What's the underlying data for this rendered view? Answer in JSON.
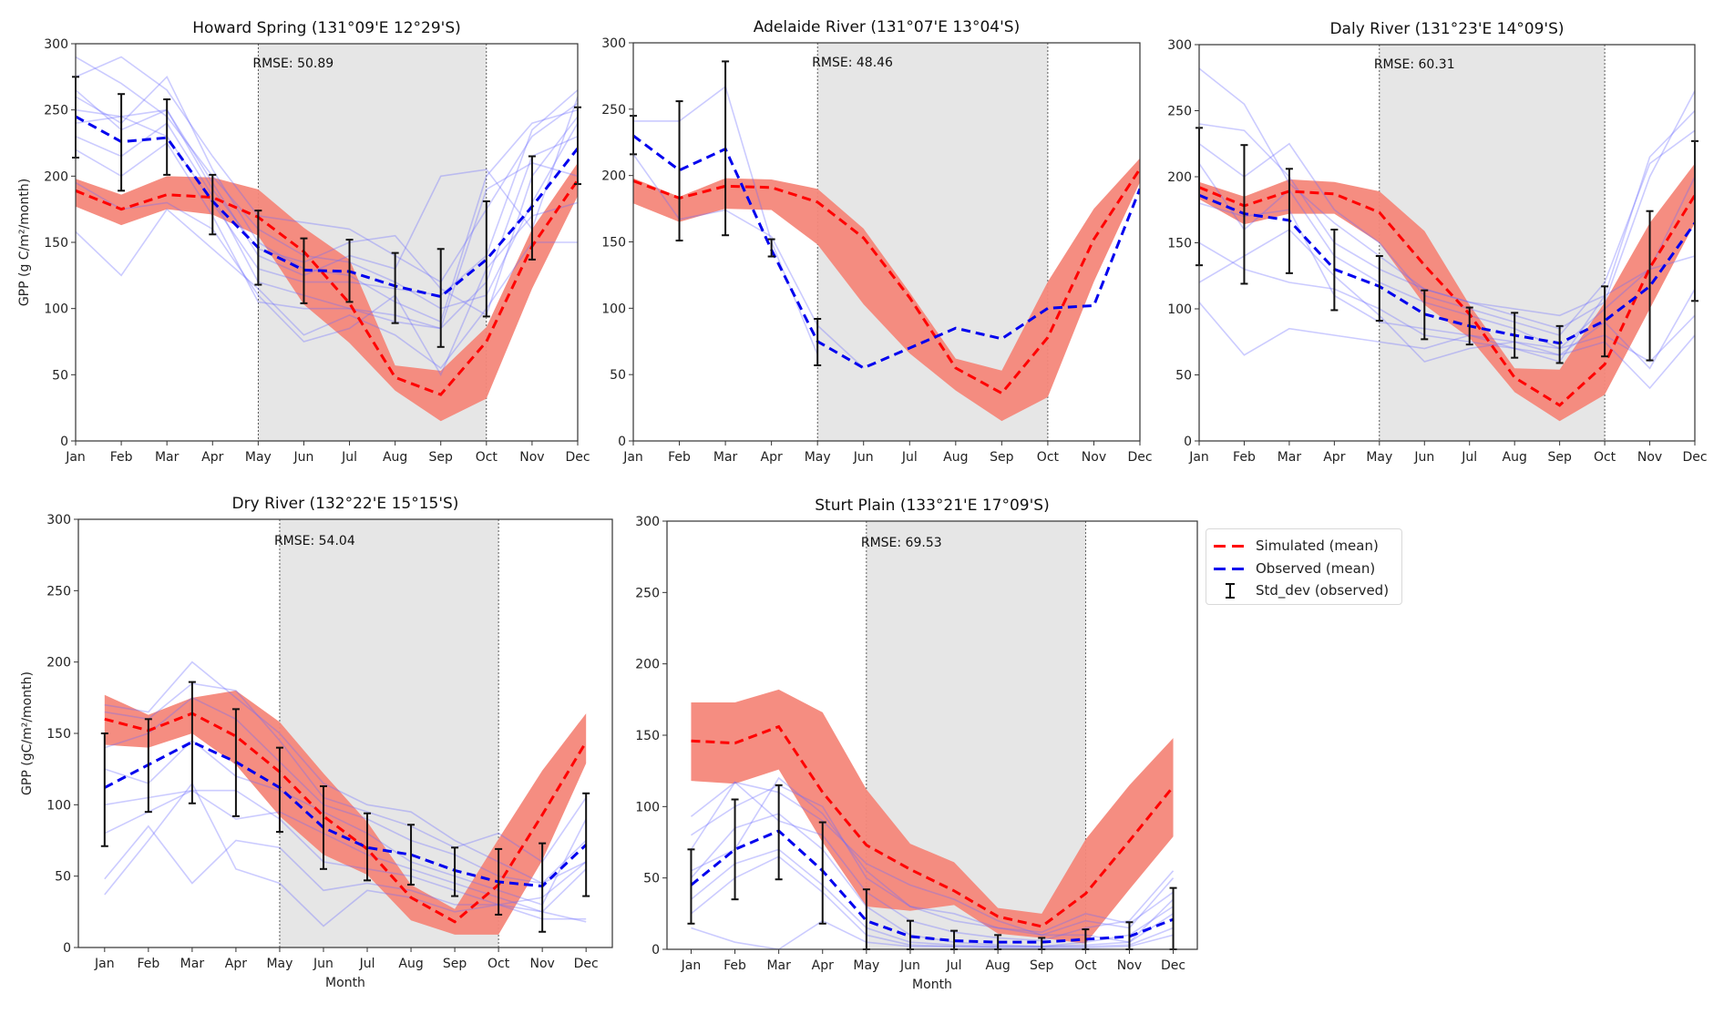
{
  "figure": {
    "legend": {
      "items": [
        {
          "label": "Simulated (mean)",
          "kind": "dashed-line",
          "color": "#ff0000"
        },
        {
          "label": "Observed (mean)",
          "kind": "dashed-line",
          "color": "#0000ee"
        },
        {
          "label": "Std_dev (observed)",
          "kind": "errorbar",
          "color": "#111111"
        }
      ]
    },
    "colors": {
      "simulated": "#ff0000",
      "simulated_band": "#f4877a",
      "observed": "#0000ee",
      "observed_years": "#6a6aff",
      "errorbar": "#111111",
      "dry_season_shade": "#e6e6e6"
    }
  },
  "chart_data": [
    {
      "type": "line",
      "title": "Howard Spring (131°09'E 12°29'S)",
      "xlabel": "",
      "ylabel": "GPP (g C/m²/month)",
      "categories": [
        "Jan",
        "Feb",
        "Mar",
        "Apr",
        "May",
        "Jun",
        "Jul",
        "Aug",
        "Sep",
        "Oct",
        "Nov",
        "Dec"
      ],
      "ylim": [
        0,
        300
      ],
      "yticks": [
        0,
        50,
        100,
        150,
        200,
        250,
        300
      ],
      "annotation": "RMSE: 50.89",
      "shaded_region": {
        "from": "May",
        "to": "Oct"
      },
      "series": [
        {
          "name": "Simulated (mean)",
          "values": [
            189,
            175,
            186,
            184,
            169,
            143,
            104,
            48,
            35,
            75,
            147,
            197
          ]
        },
        {
          "name": "Simulated range low",
          "values": [
            177,
            163,
            175,
            171,
            155,
            103,
            74,
            38,
            15,
            32,
            115,
            185
          ]
        },
        {
          "name": "Simulated range high",
          "values": [
            198,
            186,
            200,
            199,
            190,
            161,
            137,
            57,
            53,
            86,
            160,
            210
          ]
        },
        {
          "name": "Observed (mean)",
          "values": [
            245,
            226,
            229,
            181,
            146,
            129,
            128,
            117,
            109,
            137,
            177,
            221
          ]
        },
        {
          "name": "Std_dev low",
          "values": [
            214,
            189,
            201,
            156,
            118,
            104,
            105,
            89,
            71,
            94,
            137,
            194
          ]
        },
        {
          "name": "Std_dev high",
          "values": [
            275,
            262,
            258,
            201,
            174,
            153,
            152,
            142,
            145,
            181,
            215,
            252
          ]
        }
      ],
      "observed_years": [
        [
          290,
          270,
          245,
          200,
          160,
          140,
          135,
          120,
          100,
          110,
          180,
          240
        ],
        [
          275,
          290,
          265,
          215,
          170,
          165,
          160,
          140,
          120,
          175,
          230,
          255
        ],
        [
          260,
          240,
          275,
          205,
          150,
          130,
          125,
          105,
          90,
          200,
          240,
          250
        ],
        [
          250,
          245,
          250,
          190,
          145,
          135,
          150,
          155,
          115,
          95,
          200,
          245
        ],
        [
          230,
          215,
          240,
          185,
          120,
          110,
          100,
          95,
          85,
          120,
          215,
          230
        ],
        [
          220,
          200,
          225,
          170,
          105,
          100,
          100,
          90,
          85,
          190,
          210,
          200
        ],
        [
          195,
          175,
          180,
          160,
          110,
          75,
          85,
          110,
          50,
          130,
          170,
          180
        ],
        [
          158,
          125,
          175,
          145,
          115,
          80,
          95,
          80,
          55,
          100,
          150,
          150
        ],
        [
          265,
          235,
          250,
          195,
          140,
          125,
          140,
          130,
          200,
          205,
          160,
          260
        ],
        [
          240,
          245,
          230,
          180,
          130,
          120,
          120,
          115,
          110,
          140,
          235,
          265
        ]
      ]
    },
    {
      "type": "line",
      "title": "Adelaide River (131°07'E 13°04'S)",
      "xlabel": "",
      "ylabel": "",
      "categories": [
        "Jan",
        "Feb",
        "Mar",
        "Apr",
        "May",
        "Jun",
        "Jul",
        "Aug",
        "Sep",
        "Oct",
        "Nov",
        "Dec"
      ],
      "ylim": [
        0,
        300
      ],
      "yticks": [
        0,
        50,
        100,
        150,
        200,
        250,
        300
      ],
      "annotation": "RMSE: 48.46",
      "shaded_region": {
        "from": "May",
        "to": "Oct"
      },
      "series": [
        {
          "name": "Simulated (mean)",
          "values": [
            196,
            183,
            192,
            191,
            180,
            153,
            108,
            55,
            36,
            78,
            152,
            205
          ]
        },
        {
          "name": "Simulated range low",
          "values": [
            179,
            165,
            175,
            174,
            148,
            103,
            66,
            38,
            15,
            33,
            120,
            195
          ]
        },
        {
          "name": "Simulated range high",
          "values": [
            198,
            184,
            198,
            197,
            190,
            160,
            112,
            62,
            53,
            120,
            175,
            213
          ]
        },
        {
          "name": "Observed (mean)",
          "values": [
            230,
            204,
            220,
            144,
            75,
            55,
            70,
            85,
            77,
            100,
            102,
            190
          ]
        },
        {
          "name": "Std_dev low",
          "values": [
            216,
            151,
            155,
            139,
            57,
            null,
            null,
            null,
            null,
            null,
            null,
            null
          ]
        },
        {
          "name": "Std_dev high",
          "values": [
            245,
            256,
            286,
            152,
            92,
            null,
            null,
            null,
            null,
            null,
            null,
            null
          ]
        }
      ],
      "observed_years": [
        [
          241,
          241,
          267,
          150,
          65,
          null,
          null,
          null,
          null,
          null,
          null,
          null
        ],
        [
          216,
          167,
          174,
          154,
          87,
          55,
          null,
          null,
          null,
          null,
          null,
          null
        ]
      ]
    },
    {
      "type": "line",
      "title": "Daly River (131°23'E 14°09'S)",
      "xlabel": "",
      "ylabel": "",
      "categories": [
        "Jan",
        "Feb",
        "Mar",
        "Apr",
        "May",
        "Jun",
        "Jul",
        "Aug",
        "Sep",
        "Oct",
        "Nov",
        "Dec"
      ],
      "ylim": [
        0,
        300
      ],
      "yticks": [
        0,
        50,
        100,
        150,
        200,
        250,
        300
      ],
      "annotation": "RMSE: 60.31",
      "shaded_region": {
        "from": "May",
        "to": "Oct"
      },
      "series": [
        {
          "name": "Simulated (mean)",
          "values": [
            192,
            178,
            189,
            187,
            173,
            133,
            96,
            48,
            27,
            58,
            131,
            186
          ]
        },
        {
          "name": "Simulated range low",
          "values": [
            183,
            164,
            172,
            172,
            150,
            103,
            78,
            37,
            15,
            35,
            100,
            165
          ]
        },
        {
          "name": "Simulated range high",
          "values": [
            196,
            185,
            198,
            196,
            189,
            159,
            103,
            55,
            54,
            105,
            165,
            210
          ]
        },
        {
          "name": "Observed (mean)",
          "values": [
            186,
            172,
            167,
            130,
            117,
            96,
            87,
            80,
            74,
            91,
            117,
            165
          ]
        },
        {
          "name": "Std_dev low",
          "values": [
            133,
            119,
            127,
            99,
            91,
            77,
            73,
            63,
            59,
            64,
            61,
            106
          ]
        },
        {
          "name": "Std_dev high",
          "values": [
            237,
            224,
            206,
            160,
            140,
            114,
            101,
            97,
            87,
            117,
            174,
            227
          ]
        }
      ],
      "observed_years": [
        [
          282,
          255,
          195,
          165,
          140,
          115,
          105,
          95,
          85,
          105,
          200,
          265
        ],
        [
          240,
          235,
          200,
          150,
          130,
          115,
          105,
          100,
          95,
          110,
          215,
          250
        ],
        [
          225,
          200,
          225,
          175,
          150,
          110,
          100,
          90,
          80,
          120,
          210,
          235
        ],
        [
          210,
          160,
          190,
          140,
          120,
          105,
          95,
          85,
          70,
          100,
          130,
          200
        ],
        [
          180,
          170,
          175,
          110,
          90,
          85,
          80,
          75,
          65,
          90,
          55,
          115
        ],
        [
          150,
          130,
          120,
          115,
          100,
          80,
          75,
          70,
          60,
          110,
          130,
          140
        ],
        [
          120,
          140,
          160,
          125,
          95,
          60,
          70,
          75,
          70,
          80,
          60,
          95
        ],
        [
          105,
          65,
          85,
          80,
          75,
          70,
          80,
          70,
          65,
          75,
          40,
          80
        ]
      ]
    },
    {
      "type": "line",
      "title": "Dry River (132°22'E 15°15'S)",
      "xlabel": "Month",
      "ylabel": "GPP (gC/m²/month)",
      "categories": [
        "Jan",
        "Feb",
        "Mar",
        "Apr",
        "May",
        "Jun",
        "Jul",
        "Aug",
        "Sep",
        "Oct",
        "Nov",
        "Dec"
      ],
      "ylim": [
        0,
        300
      ],
      "yticks": [
        0,
        50,
        100,
        150,
        200,
        250,
        300
      ],
      "annotation": "RMSE: 54.04",
      "shaded_region": {
        "from": "May",
        "to": "Oct"
      },
      "series": [
        {
          "name": "Simulated (mean)",
          "values": [
            160,
            152,
            164,
            148,
            123,
            92,
            69,
            35,
            18,
            44,
            93,
            144
          ]
        },
        {
          "name": "Simulated range low",
          "values": [
            142,
            140,
            150,
            128,
            92,
            65,
            51,
            19,
            9,
            9,
            61,
            129
          ]
        },
        {
          "name": "Simulated range high",
          "values": [
            177,
            163,
            175,
            180,
            158,
            122,
            88,
            44,
            27,
            76,
            124,
            164
          ]
        },
        {
          "name": "Observed (mean)",
          "values": [
            112,
            128,
            144,
            130,
            112,
            84,
            70,
            65,
            54,
            46,
            43,
            72
          ]
        },
        {
          "name": "Std_dev low",
          "values": [
            71,
            95,
            101,
            92,
            81,
            55,
            47,
            44,
            36,
            23,
            11,
            36
          ]
        },
        {
          "name": "Std_dev high",
          "values": [
            150,
            160,
            186,
            167,
            140,
            113,
            94,
            86,
            70,
            69,
            73,
            108
          ]
        }
      ],
      "observed_years": [
        [
          170,
          165,
          200,
          175,
          150,
          115,
          100,
          95,
          75,
          60,
          45,
          75
        ],
        [
          165,
          160,
          185,
          180,
          145,
          105,
          95,
          85,
          70,
          80,
          60,
          105
        ],
        [
          140,
          150,
          175,
          160,
          130,
          100,
          90,
          75,
          65,
          50,
          45,
          60
        ],
        [
          125,
          115,
          145,
          120,
          110,
          95,
          80,
          60,
          50,
          40,
          30,
          90
        ],
        [
          100,
          105,
          110,
          90,
          95,
          80,
          65,
          55,
          45,
          35,
          25,
          55
        ],
        [
          80,
          95,
          110,
          110,
          90,
          60,
          55,
          50,
          40,
          30,
          20,
          20
        ],
        [
          48,
          85,
          45,
          75,
          70,
          40,
          45,
          40,
          30,
          30,
          25,
          18
        ],
        [
          37,
          75,
          115,
          55,
          45,
          15,
          40,
          35,
          25,
          30,
          35,
          60
        ]
      ]
    },
    {
      "type": "line",
      "title": "Sturt Plain (133°21'E 17°09'S)",
      "xlabel": "Month",
      "ylabel": "",
      "categories": [
        "Jan",
        "Feb",
        "Mar",
        "Apr",
        "May",
        "Jun",
        "Jul",
        "Aug",
        "Sep",
        "Oct",
        "Nov",
        "Dec"
      ],
      "ylim": [
        0,
        300
      ],
      "yticks": [
        0,
        50,
        100,
        150,
        200,
        250,
        300
      ],
      "annotation": "RMSE: 69.53",
      "shaded_region": {
        "from": "May",
        "to": "Oct"
      },
      "series": [
        {
          "name": "Simulated (mean)",
          "values": [
            146,
            144.5,
            156,
            110,
            73,
            56,
            41,
            23,
            16,
            39,
            76,
            114
          ]
        },
        {
          "name": "Simulated range low",
          "values": [
            118,
            116,
            126,
            75,
            30,
            27,
            31,
            11,
            8,
            4,
            42,
            79
          ]
        },
        {
          "name": "Simulated range high",
          "values": [
            173,
            173,
            182,
            166,
            112,
            74,
            61,
            29,
            25,
            77,
            115,
            148
          ]
        },
        {
          "name": "Observed (mean)",
          "values": [
            45,
            70,
            83,
            55,
            20,
            9,
            6,
            5,
            5,
            7,
            9,
            21
          ]
        },
        {
          "name": "Std_dev low",
          "values": [
            18,
            35,
            49,
            18,
            0,
            0,
            0,
            0,
            0,
            0,
            0,
            0
          ]
        },
        {
          "name": "Std_dev high",
          "values": [
            70,
            105,
            115,
            89,
            42,
            20,
            13,
            10,
            8,
            14,
            19,
            43
          ]
        }
      ],
      "observed_years": [
        [
          93,
          117,
          90,
          80,
          40,
          20,
          12,
          8,
          6,
          15,
          20,
          55
        ],
        [
          80,
          100,
          115,
          100,
          50,
          30,
          25,
          15,
          10,
          20,
          15,
          50
        ],
        [
          70,
          117,
          110,
          90,
          60,
          45,
          35,
          20,
          10,
          10,
          5,
          35
        ],
        [
          50,
          85,
          95,
          70,
          30,
          10,
          5,
          3,
          2,
          5,
          10,
          30
        ],
        [
          35,
          60,
          70,
          45,
          15,
          5,
          3,
          2,
          2,
          3,
          5,
          25
        ],
        [
          25,
          50,
          65,
          40,
          10,
          3,
          2,
          2,
          2,
          2,
          3,
          15
        ],
        [
          15,
          5,
          0,
          20,
          5,
          2,
          2,
          1,
          1,
          1,
          2,
          10
        ],
        [
          55,
          70,
          120,
          95,
          55,
          30,
          20,
          15,
          12,
          25,
          18,
          40
        ]
      ]
    }
  ]
}
